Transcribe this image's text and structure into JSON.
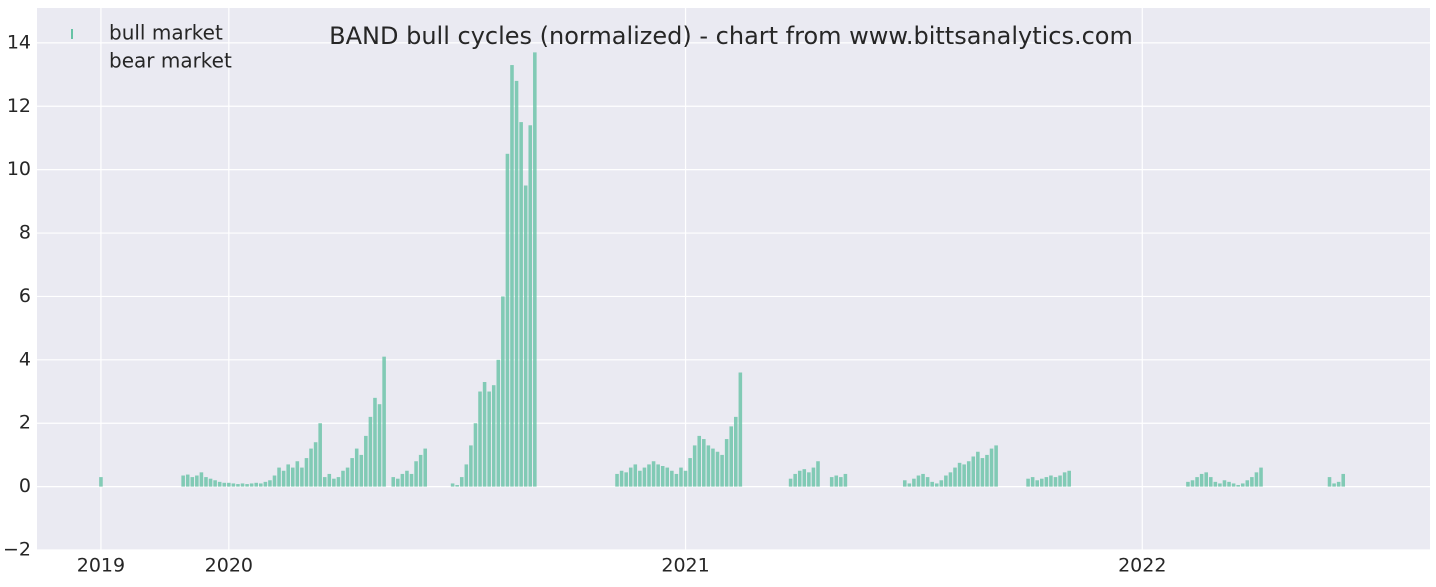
{
  "chart_data": {
    "type": "bar",
    "title": "BAND bull cycles (normalized)  - chart from www.bittsanalytics.com",
    "series": [
      {
        "name": "bull market",
        "color": "#66c2a5",
        "x": [
          2019.72,
          2019.9,
          2019.91,
          2019.92,
          2019.93,
          2019.94,
          2019.95,
          2019.96,
          2019.97,
          2019.98,
          2019.99,
          2020.0,
          2020.01,
          2020.02,
          2020.03,
          2020.04,
          2020.05,
          2020.06,
          2020.07,
          2020.08,
          2020.09,
          2020.1,
          2020.11,
          2020.12,
          2020.13,
          2020.14,
          2020.15,
          2020.16,
          2020.17,
          2020.18,
          2020.19,
          2020.2,
          2020.21,
          2020.22,
          2020.23,
          2020.24,
          2020.25,
          2020.26,
          2020.27,
          2020.28,
          2020.29,
          2020.3,
          2020.31,
          2020.32,
          2020.33,
          2020.34,
          2020.36,
          2020.37,
          2020.38,
          2020.39,
          2020.4,
          2020.41,
          2020.42,
          2020.43,
          2020.49,
          2020.5,
          2020.51,
          2020.52,
          2020.53,
          2020.54,
          2020.55,
          2020.56,
          2020.57,
          2020.58,
          2020.59,
          2020.6,
          2020.61,
          2020.62,
          2020.63,
          2020.64,
          2020.65,
          2020.66,
          2020.67,
          2020.85,
          2020.86,
          2020.87,
          2020.88,
          2020.89,
          2020.9,
          2020.91,
          2020.92,
          2020.93,
          2020.94,
          2020.95,
          2020.96,
          2020.97,
          2020.98,
          2020.99,
          2021.0,
          2021.01,
          2021.02,
          2021.03,
          2021.04,
          2021.05,
          2021.06,
          2021.07,
          2021.08,
          2021.09,
          2021.1,
          2021.11,
          2021.12,
          2021.23,
          2021.24,
          2021.25,
          2021.26,
          2021.27,
          2021.28,
          2021.29,
          2021.32,
          2021.33,
          2021.34,
          2021.35,
          2021.48,
          2021.49,
          2021.5,
          2021.51,
          2021.52,
          2021.53,
          2021.54,
          2021.55,
          2021.56,
          2021.57,
          2021.58,
          2021.59,
          2021.6,
          2021.61,
          2021.62,
          2021.63,
          2021.64,
          2021.65,
          2021.66,
          2021.67,
          2021.68,
          2021.75,
          2021.76,
          2021.77,
          2021.78,
          2021.79,
          2021.8,
          2021.81,
          2021.82,
          2021.83,
          2021.84,
          2022.1,
          2022.11,
          2022.12,
          2022.13,
          2022.14,
          2022.15,
          2022.16,
          2022.17,
          2022.18,
          2022.19,
          2022.2,
          2022.21,
          2022.22,
          2022.23,
          2022.24,
          2022.25,
          2022.26,
          2022.41,
          2022.42,
          2022.43,
          2022.44
        ],
        "values": [
          0.3,
          0.35,
          0.38,
          0.3,
          0.35,
          0.45,
          0.3,
          0.25,
          0.2,
          0.15,
          0.12,
          0.12,
          0.1,
          0.08,
          0.1,
          0.08,
          0.1,
          0.12,
          0.1,
          0.15,
          0.2,
          0.35,
          0.6,
          0.5,
          0.7,
          0.6,
          0.8,
          0.6,
          0.9,
          1.2,
          1.4,
          2.0,
          0.3,
          0.4,
          0.25,
          0.3,
          0.5,
          0.6,
          0.9,
          1.2,
          1.0,
          1.6,
          2.2,
          2.8,
          2.6,
          4.1,
          0.3,
          0.25,
          0.4,
          0.5,
          0.4,
          0.8,
          1.0,
          1.2,
          0.1,
          0.05,
          0.3,
          0.7,
          1.3,
          2.0,
          3.0,
          3.3,
          3.0,
          3.2,
          4.0,
          6.0,
          10.5,
          13.3,
          12.8,
          11.5,
          9.5,
          11.4,
          13.7,
          0.4,
          0.5,
          0.45,
          0.6,
          0.7,
          0.5,
          0.6,
          0.7,
          0.8,
          0.7,
          0.65,
          0.6,
          0.5,
          0.4,
          0.6,
          0.5,
          0.9,
          1.3,
          1.6,
          1.5,
          1.3,
          1.2,
          1.1,
          1.0,
          1.5,
          1.9,
          2.2,
          3.6,
          0.25,
          0.4,
          0.5,
          0.55,
          0.45,
          0.6,
          0.8,
          0.3,
          0.35,
          0.3,
          0.4,
          0.2,
          0.1,
          0.25,
          0.35,
          0.4,
          0.3,
          0.15,
          0.1,
          0.2,
          0.35,
          0.45,
          0.6,
          0.75,
          0.7,
          0.8,
          0.95,
          1.1,
          0.9,
          1.0,
          1.2,
          1.3,
          0.25,
          0.3,
          0.2,
          0.25,
          0.3,
          0.35,
          0.3,
          0.35,
          0.45,
          0.5,
          0.15,
          0.2,
          0.3,
          0.4,
          0.45,
          0.3,
          0.15,
          0.1,
          0.2,
          0.15,
          0.1,
          0.05,
          0.1,
          0.2,
          0.3,
          0.45,
          0.6,
          0.3,
          0.1,
          0.15,
          0.4
        ]
      },
      {
        "name": "bear market",
        "x": [],
        "values": []
      }
    ],
    "xlim": [
      2019.58,
      2022.63
    ],
    "xticks": [
      {
        "value": 2019.72,
        "label": "2019"
      },
      2020,
      2021,
      2022
    ],
    "ylim": [
      -2,
      15.1
    ],
    "yticks": [
      {
        "value": -2,
        "label": "−2"
      },
      0,
      2,
      4,
      6,
      8,
      10,
      12,
      14
    ],
    "grid": true,
    "legend": "upper left"
  }
}
